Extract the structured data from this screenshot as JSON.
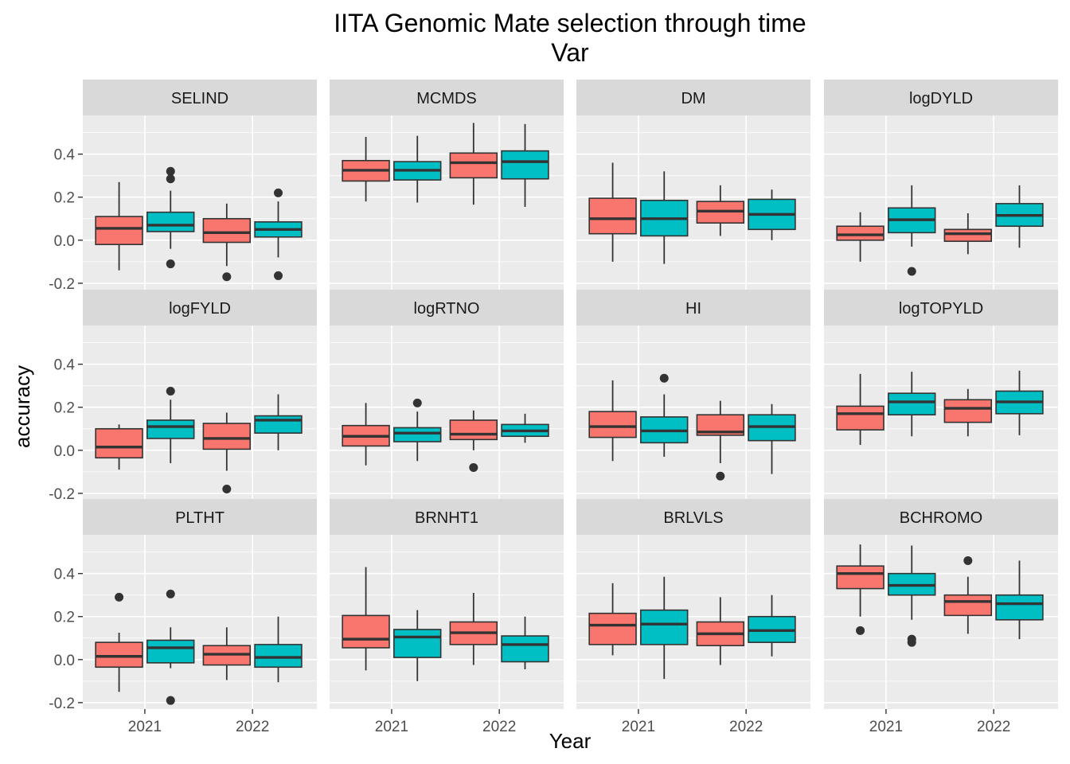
{
  "chart_data": {
    "type": "boxplot",
    "title": "IITA Genomic Mate selection through time",
    "subtitle": "Var",
    "xlabel": "Year",
    "ylabel": "accuracy",
    "categories": [
      "2021",
      "2022"
    ],
    "y_ticks": [
      -0.2,
      0.0,
      0.2,
      0.4
    ],
    "y_tick_labels": [
      "-0.2",
      "0.0",
      "0.2",
      "0.4"
    ],
    "ylim": [
      -0.23,
      0.58
    ],
    "grid": true,
    "legend": "none",
    "series_colors": [
      "#F8766D",
      "#00BFC4"
    ],
    "facet_layout": "3 rows x 4 columns",
    "panels": [
      {
        "name": "SELIND",
        "boxes": [
          {
            "year": "2021",
            "group": 1,
            "min": -0.14,
            "q1": -0.02,
            "median": 0.055,
            "q3": 0.11,
            "max": 0.27,
            "outliers": []
          },
          {
            "year": "2021",
            "group": 2,
            "min": -0.04,
            "q1": 0.04,
            "median": 0.07,
            "q3": 0.13,
            "max": 0.23,
            "outliers": [
              0.32,
              0.285,
              -0.11
            ]
          },
          {
            "year": "2022",
            "group": 1,
            "min": -0.12,
            "q1": -0.01,
            "median": 0.035,
            "q3": 0.1,
            "max": 0.17,
            "outliers": [
              -0.17
            ]
          },
          {
            "year": "2022",
            "group": 2,
            "min": -0.08,
            "q1": 0.015,
            "median": 0.05,
            "q3": 0.085,
            "max": 0.18,
            "outliers": [
              0.22,
              -0.165
            ]
          }
        ]
      },
      {
        "name": "MCMDS",
        "boxes": [
          {
            "year": "2021",
            "group": 1,
            "min": 0.18,
            "q1": 0.275,
            "median": 0.325,
            "q3": 0.37,
            "max": 0.48,
            "outliers": []
          },
          {
            "year": "2021",
            "group": 2,
            "min": 0.175,
            "q1": 0.28,
            "median": 0.325,
            "q3": 0.365,
            "max": 0.485,
            "outliers": []
          },
          {
            "year": "2022",
            "group": 1,
            "min": 0.165,
            "q1": 0.29,
            "median": 0.36,
            "q3": 0.405,
            "max": 0.545,
            "outliers": []
          },
          {
            "year": "2022",
            "group": 2,
            "min": 0.155,
            "q1": 0.285,
            "median": 0.365,
            "q3": 0.415,
            "max": 0.54,
            "outliers": []
          }
        ]
      },
      {
        "name": "DM",
        "boxes": [
          {
            "year": "2021",
            "group": 1,
            "min": -0.1,
            "q1": 0.03,
            "median": 0.1,
            "q3": 0.195,
            "max": 0.36,
            "outliers": []
          },
          {
            "year": "2021",
            "group": 2,
            "min": -0.11,
            "q1": 0.02,
            "median": 0.1,
            "q3": 0.185,
            "max": 0.32,
            "outliers": []
          },
          {
            "year": "2022",
            "group": 1,
            "min": 0.02,
            "q1": 0.08,
            "median": 0.135,
            "q3": 0.18,
            "max": 0.255,
            "outliers": []
          },
          {
            "year": "2022",
            "group": 2,
            "min": 0.0,
            "q1": 0.05,
            "median": 0.12,
            "q3": 0.19,
            "max": 0.235,
            "outliers": []
          }
        ]
      },
      {
        "name": "logDYLD",
        "boxes": [
          {
            "year": "2021",
            "group": 1,
            "min": -0.1,
            "q1": 0.0,
            "median": 0.025,
            "q3": 0.065,
            "max": 0.13,
            "outliers": []
          },
          {
            "year": "2021",
            "group": 2,
            "min": -0.03,
            "q1": 0.035,
            "median": 0.095,
            "q3": 0.15,
            "max": 0.255,
            "outliers": [
              -0.145
            ]
          },
          {
            "year": "2022",
            "group": 1,
            "min": -0.065,
            "q1": -0.005,
            "median": 0.03,
            "q3": 0.05,
            "max": 0.125,
            "outliers": []
          },
          {
            "year": "2022",
            "group": 2,
            "min": -0.035,
            "q1": 0.065,
            "median": 0.115,
            "q3": 0.17,
            "max": 0.255,
            "outliers": []
          }
        ]
      },
      {
        "name": "logFYLD",
        "boxes": [
          {
            "year": "2021",
            "group": 1,
            "min": -0.09,
            "q1": -0.035,
            "median": 0.015,
            "q3": 0.1,
            "max": 0.12,
            "outliers": []
          },
          {
            "year": "2021",
            "group": 2,
            "min": -0.06,
            "q1": 0.055,
            "median": 0.11,
            "q3": 0.14,
            "max": 0.235,
            "outliers": [
              0.275
            ]
          },
          {
            "year": "2022",
            "group": 1,
            "min": -0.095,
            "q1": 0.005,
            "median": 0.055,
            "q3": 0.125,
            "max": 0.175,
            "outliers": [
              -0.18
            ]
          },
          {
            "year": "2022",
            "group": 2,
            "min": 0.0,
            "q1": 0.08,
            "median": 0.14,
            "q3": 0.16,
            "max": 0.26,
            "outliers": []
          }
        ]
      },
      {
        "name": "logRTNO",
        "boxes": [
          {
            "year": "2021",
            "group": 1,
            "min": -0.07,
            "q1": 0.02,
            "median": 0.065,
            "q3": 0.115,
            "max": 0.22,
            "outliers": []
          },
          {
            "year": "2021",
            "group": 2,
            "min": -0.05,
            "q1": 0.04,
            "median": 0.08,
            "q3": 0.105,
            "max": 0.18,
            "outliers": [
              0.22
            ]
          },
          {
            "year": "2022",
            "group": 1,
            "min": 0.0,
            "q1": 0.05,
            "median": 0.075,
            "q3": 0.14,
            "max": 0.185,
            "outliers": [
              -0.08
            ]
          },
          {
            "year": "2022",
            "group": 2,
            "min": 0.035,
            "q1": 0.065,
            "median": 0.09,
            "q3": 0.12,
            "max": 0.17,
            "outliers": []
          }
        ]
      },
      {
        "name": "HI",
        "boxes": [
          {
            "year": "2021",
            "group": 1,
            "min": -0.05,
            "q1": 0.06,
            "median": 0.11,
            "q3": 0.18,
            "max": 0.325,
            "outliers": []
          },
          {
            "year": "2021",
            "group": 2,
            "min": -0.03,
            "q1": 0.035,
            "median": 0.09,
            "q3": 0.155,
            "max": 0.26,
            "outliers": [
              0.335
            ]
          },
          {
            "year": "2022",
            "group": 1,
            "min": -0.06,
            "q1": 0.07,
            "median": 0.085,
            "q3": 0.165,
            "max": 0.23,
            "outliers": [
              -0.12
            ]
          },
          {
            "year": "2022",
            "group": 2,
            "min": -0.11,
            "q1": 0.045,
            "median": 0.11,
            "q3": 0.165,
            "max": 0.215,
            "outliers": []
          }
        ]
      },
      {
        "name": "logTOPYLD",
        "boxes": [
          {
            "year": "2021",
            "group": 1,
            "min": 0.025,
            "q1": 0.095,
            "median": 0.17,
            "q3": 0.205,
            "max": 0.355,
            "outliers": []
          },
          {
            "year": "2021",
            "group": 2,
            "min": 0.065,
            "q1": 0.165,
            "median": 0.225,
            "q3": 0.265,
            "max": 0.365,
            "outliers": []
          },
          {
            "year": "2022",
            "group": 1,
            "min": 0.065,
            "q1": 0.13,
            "median": 0.195,
            "q3": 0.235,
            "max": 0.285,
            "outliers": []
          },
          {
            "year": "2022",
            "group": 2,
            "min": 0.07,
            "q1": 0.17,
            "median": 0.225,
            "q3": 0.275,
            "max": 0.37,
            "outliers": []
          }
        ]
      },
      {
        "name": "PLTHT",
        "boxes": [
          {
            "year": "2021",
            "group": 1,
            "min": -0.15,
            "q1": -0.035,
            "median": 0.015,
            "q3": 0.08,
            "max": 0.125,
            "outliers": [
              0.29
            ]
          },
          {
            "year": "2021",
            "group": 2,
            "min": -0.04,
            "q1": -0.015,
            "median": 0.055,
            "q3": 0.09,
            "max": 0.15,
            "outliers": [
              0.305,
              -0.19
            ]
          },
          {
            "year": "2022",
            "group": 1,
            "min": -0.095,
            "q1": -0.025,
            "median": 0.025,
            "q3": 0.065,
            "max": 0.15,
            "outliers": []
          },
          {
            "year": "2022",
            "group": 2,
            "min": -0.105,
            "q1": -0.035,
            "median": 0.01,
            "q3": 0.07,
            "max": 0.2,
            "outliers": []
          }
        ]
      },
      {
        "name": "BRNHT1",
        "boxes": [
          {
            "year": "2021",
            "group": 1,
            "min": -0.05,
            "q1": 0.055,
            "median": 0.095,
            "q3": 0.205,
            "max": 0.43,
            "outliers": []
          },
          {
            "year": "2021",
            "group": 2,
            "min": -0.1,
            "q1": 0.01,
            "median": 0.105,
            "q3": 0.14,
            "max": 0.23,
            "outliers": []
          },
          {
            "year": "2022",
            "group": 1,
            "min": -0.025,
            "q1": 0.07,
            "median": 0.125,
            "q3": 0.175,
            "max": 0.31,
            "outliers": []
          },
          {
            "year": "2022",
            "group": 2,
            "min": -0.045,
            "q1": -0.01,
            "median": 0.07,
            "q3": 0.11,
            "max": 0.2,
            "outliers": []
          }
        ]
      },
      {
        "name": "BRLVLS",
        "boxes": [
          {
            "year": "2021",
            "group": 1,
            "min": 0.02,
            "q1": 0.07,
            "median": 0.16,
            "q3": 0.215,
            "max": 0.355,
            "outliers": []
          },
          {
            "year": "2021",
            "group": 2,
            "min": -0.09,
            "q1": 0.07,
            "median": 0.165,
            "q3": 0.23,
            "max": 0.385,
            "outliers": []
          },
          {
            "year": "2022",
            "group": 1,
            "min": -0.025,
            "q1": 0.065,
            "median": 0.12,
            "q3": 0.175,
            "max": 0.29,
            "outliers": []
          },
          {
            "year": "2022",
            "group": 2,
            "min": 0.015,
            "q1": 0.08,
            "median": 0.135,
            "q3": 0.2,
            "max": 0.3,
            "outliers": []
          }
        ]
      },
      {
        "name": "BCHROMO",
        "boxes": [
          {
            "year": "2021",
            "group": 1,
            "min": 0.2,
            "q1": 0.33,
            "median": 0.4,
            "q3": 0.435,
            "max": 0.535,
            "outliers": [
              0.135
            ]
          },
          {
            "year": "2021",
            "group": 2,
            "min": 0.185,
            "q1": 0.3,
            "median": 0.345,
            "q3": 0.4,
            "max": 0.53,
            "outliers": [
              0.095,
              0.08
            ]
          },
          {
            "year": "2022",
            "group": 1,
            "min": 0.12,
            "q1": 0.205,
            "median": 0.27,
            "q3": 0.3,
            "max": 0.385,
            "outliers": [
              0.46
            ]
          },
          {
            "year": "2022",
            "group": 2,
            "min": 0.095,
            "q1": 0.185,
            "median": 0.26,
            "q3": 0.3,
            "max": 0.46,
            "outliers": []
          }
        ]
      }
    ]
  }
}
